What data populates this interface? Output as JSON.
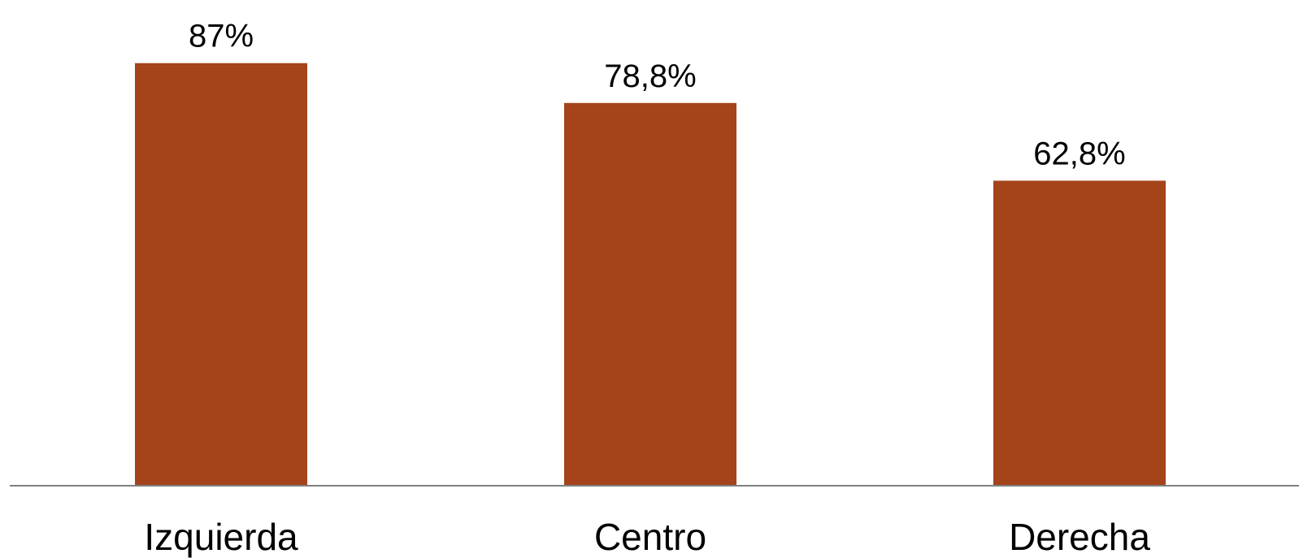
{
  "chart_data": {
    "type": "bar",
    "categories": [
      "Izquierda",
      "Centro",
      "Derecha"
    ],
    "values": [
      87,
      78.8,
      62.8
    ],
    "data_labels": [
      "87%",
      "78,8%",
      "62,8%"
    ],
    "title": "",
    "xlabel": "",
    "ylabel": "",
    "ylim": [
      0,
      100
    ],
    "grid": false,
    "legend": "none",
    "colors": {
      "bar": "#A5431A",
      "axis": "#808080",
      "text": "#000000",
      "background": "#FFFFFF"
    }
  }
}
